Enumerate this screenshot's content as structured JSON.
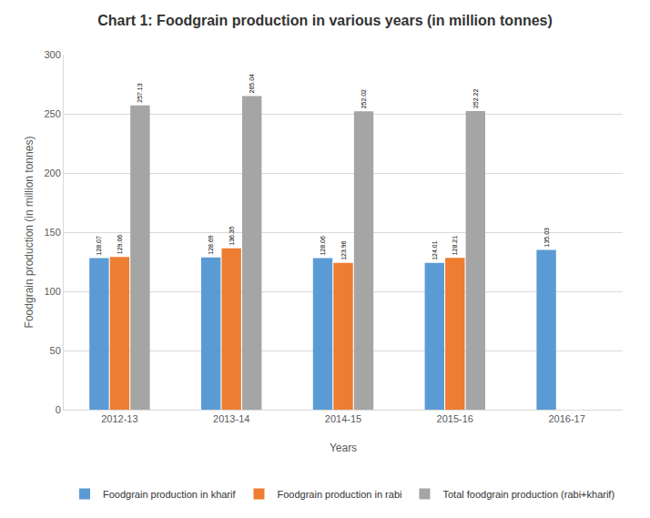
{
  "chart_data": {
    "type": "bar",
    "title": "Chart 1: Foodgrain production in various years (in million tonnes)",
    "x_label": "Years",
    "y_label": "Foodgrain production (in million tonnes)",
    "categories": [
      "2012-13",
      "2013-14",
      "2014-15",
      "2015-16",
      "2016-17"
    ],
    "series": [
      {
        "name": "Foodgrain production in kharif",
        "color": "#5B9BD5",
        "values": [
          128.07,
          128.69,
          128.06,
          124.01,
          135.03
        ]
      },
      {
        "name": "Foodgrain production in rabi",
        "color": "#ED7D31",
        "values": [
          129.06,
          136.35,
          123.96,
          128.21,
          null
        ]
      },
      {
        "name": "Total foodgrain production (rabi+kharif)",
        "color": "#A5A5A5",
        "values": [
          257.13,
          265.04,
          252.02,
          252.22,
          null
        ]
      }
    ],
    "ylim": [
      0,
      300
    ],
    "yticks": [
      0,
      50,
      100,
      150,
      200,
      250,
      300
    ],
    "grid": true,
    "legend": "bottom",
    "data_labels": true
  }
}
